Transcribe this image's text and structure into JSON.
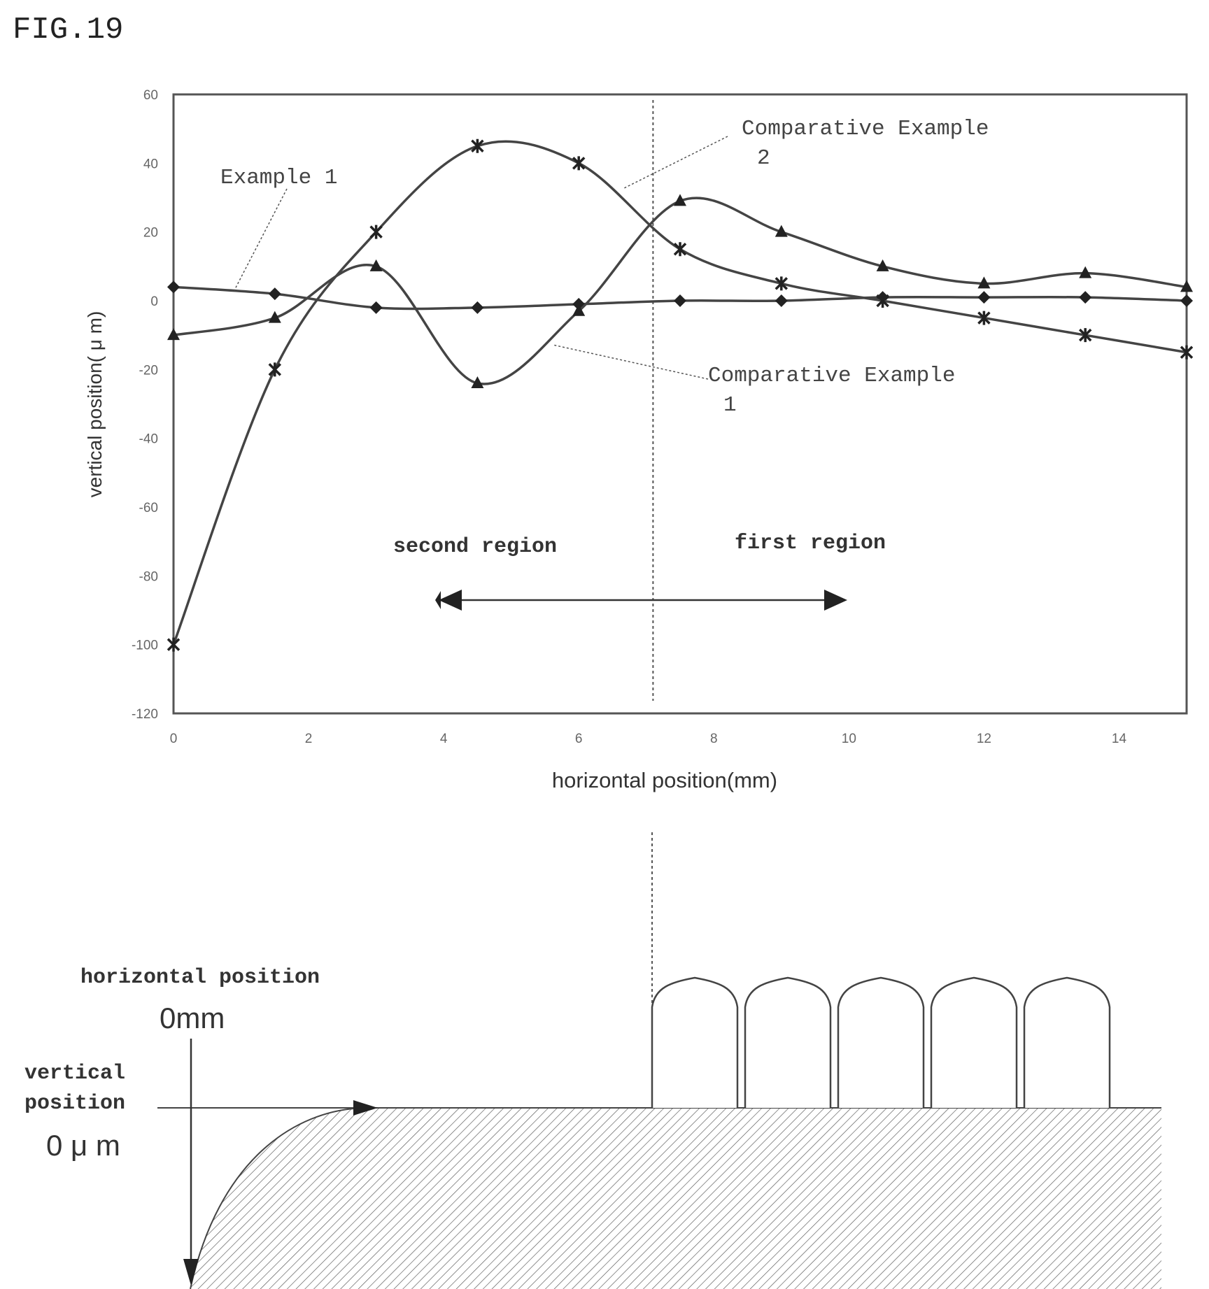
{
  "figure_label": "FIG.19",
  "chart_data": {
    "type": "line",
    "xlabel": "horizontal position(mm)",
    "ylabel": "vertical position( μ m)",
    "xlim": [
      0,
      15
    ],
    "ylim": [
      -120,
      60
    ],
    "x_ticks": [
      0,
      2,
      4,
      6,
      8,
      10,
      12,
      14
    ],
    "y_ticks": [
      60,
      40,
      20,
      0,
      -20,
      -40,
      -60,
      -80,
      -100,
      -120
    ],
    "grid": false,
    "boundary_x": 7.1,
    "series": [
      {
        "name": "Example 1",
        "marker": "diamond",
        "points": [
          [
            0,
            4
          ],
          [
            1.5,
            2
          ],
          [
            3,
            -2
          ],
          [
            4.5,
            -2
          ],
          [
            6,
            -1
          ],
          [
            7.5,
            0
          ],
          [
            9,
            0
          ],
          [
            10.5,
            1
          ],
          [
            12,
            1
          ],
          [
            13.5,
            1
          ],
          [
            15,
            0
          ]
        ]
      },
      {
        "name": "Comparative Example 1",
        "marker": "triangle",
        "points": [
          [
            0,
            -10
          ],
          [
            1.5,
            -5
          ],
          [
            3,
            10
          ],
          [
            4.5,
            -24
          ],
          [
            6,
            -3
          ],
          [
            7.5,
            29
          ],
          [
            9,
            20
          ],
          [
            10.5,
            10
          ],
          [
            12,
            5
          ],
          [
            13.5,
            8
          ],
          [
            15,
            4
          ]
        ]
      },
      {
        "name": "Comparative Example 2",
        "marker": "star",
        "points": [
          [
            0,
            -100
          ],
          [
            1.5,
            -20
          ],
          [
            3,
            20
          ],
          [
            4.5,
            45
          ],
          [
            6,
            40
          ],
          [
            7.5,
            15
          ],
          [
            9,
            5
          ],
          [
            10.5,
            0
          ],
          [
            12,
            -5
          ],
          [
            13.5,
            -10
          ],
          [
            15,
            -15
          ]
        ]
      }
    ],
    "annotations": {
      "second_region": "second region",
      "first_region": "first region"
    }
  },
  "schematic": {
    "horizontal_label": "horizontal position",
    "horizontal_origin": "0mm",
    "vertical_label_line1": "vertical",
    "vertical_label_line2": "position",
    "vertical_origin": "0 μ m",
    "bump_count": 5
  }
}
